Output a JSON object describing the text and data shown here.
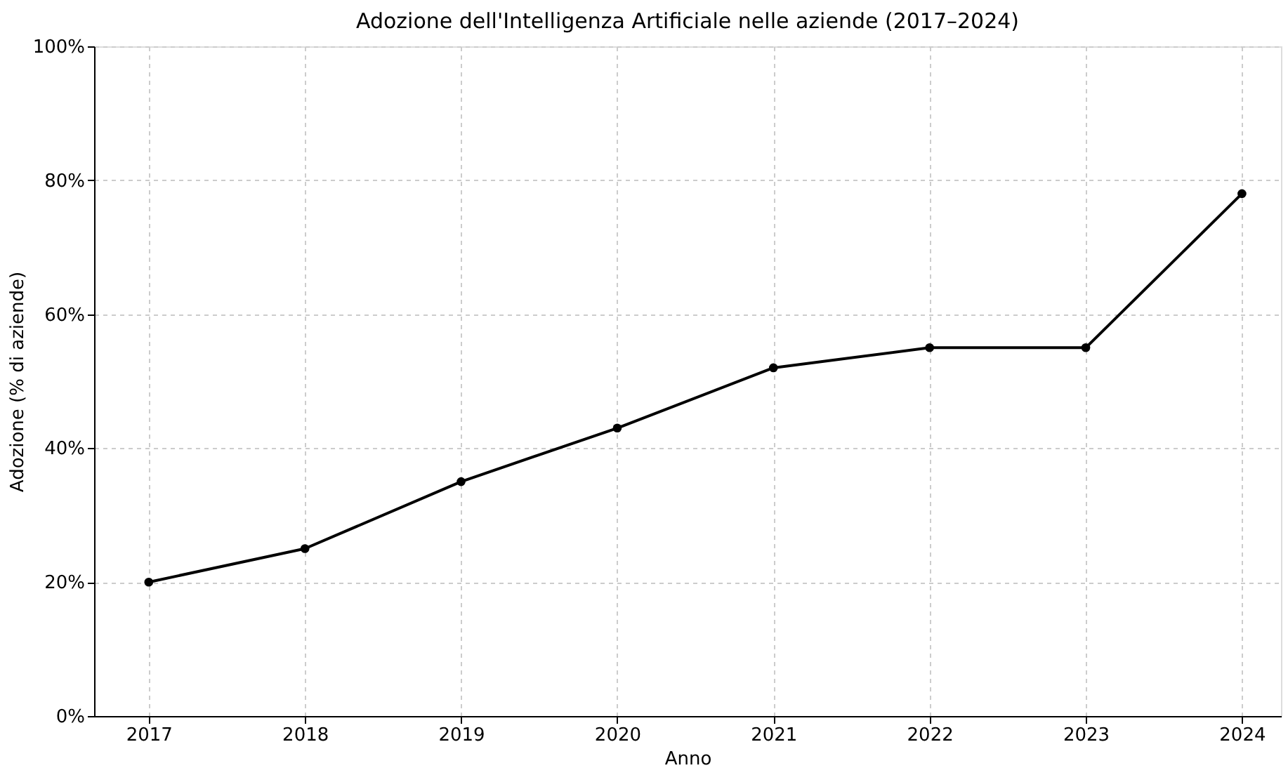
{
  "chart_data": {
    "type": "line",
    "title": "Adozione dell'Intelligenza Artificiale nelle aziende (2017–2024)",
    "xlabel": "Anno",
    "ylabel": "Adozione (% di aziende)",
    "x": [
      2017,
      2018,
      2019,
      2020,
      2021,
      2022,
      2023,
      2024
    ],
    "series": [
      {
        "color": "#000000",
        "values": [
          20,
          25,
          35,
          43,
          52,
          55,
          55,
          78
        ]
      }
    ],
    "xlim": [
      2016.65,
      2024.25
    ],
    "xticks": [
      2017,
      2018,
      2019,
      2020,
      2021,
      2022,
      2023,
      2024
    ],
    "ylim": [
      0,
      100
    ],
    "yticks": [
      {
        "value": 0,
        "label": "0%"
      },
      {
        "value": 20,
        "label": "20%"
      },
      {
        "value": 40,
        "label": "40%"
      },
      {
        "value": 60,
        "label": "60%"
      },
      {
        "value": 80,
        "label": "80%"
      },
      {
        "value": 100,
        "label": "100%"
      }
    ],
    "grid": true,
    "marker": "circle",
    "line_style": "solid"
  }
}
